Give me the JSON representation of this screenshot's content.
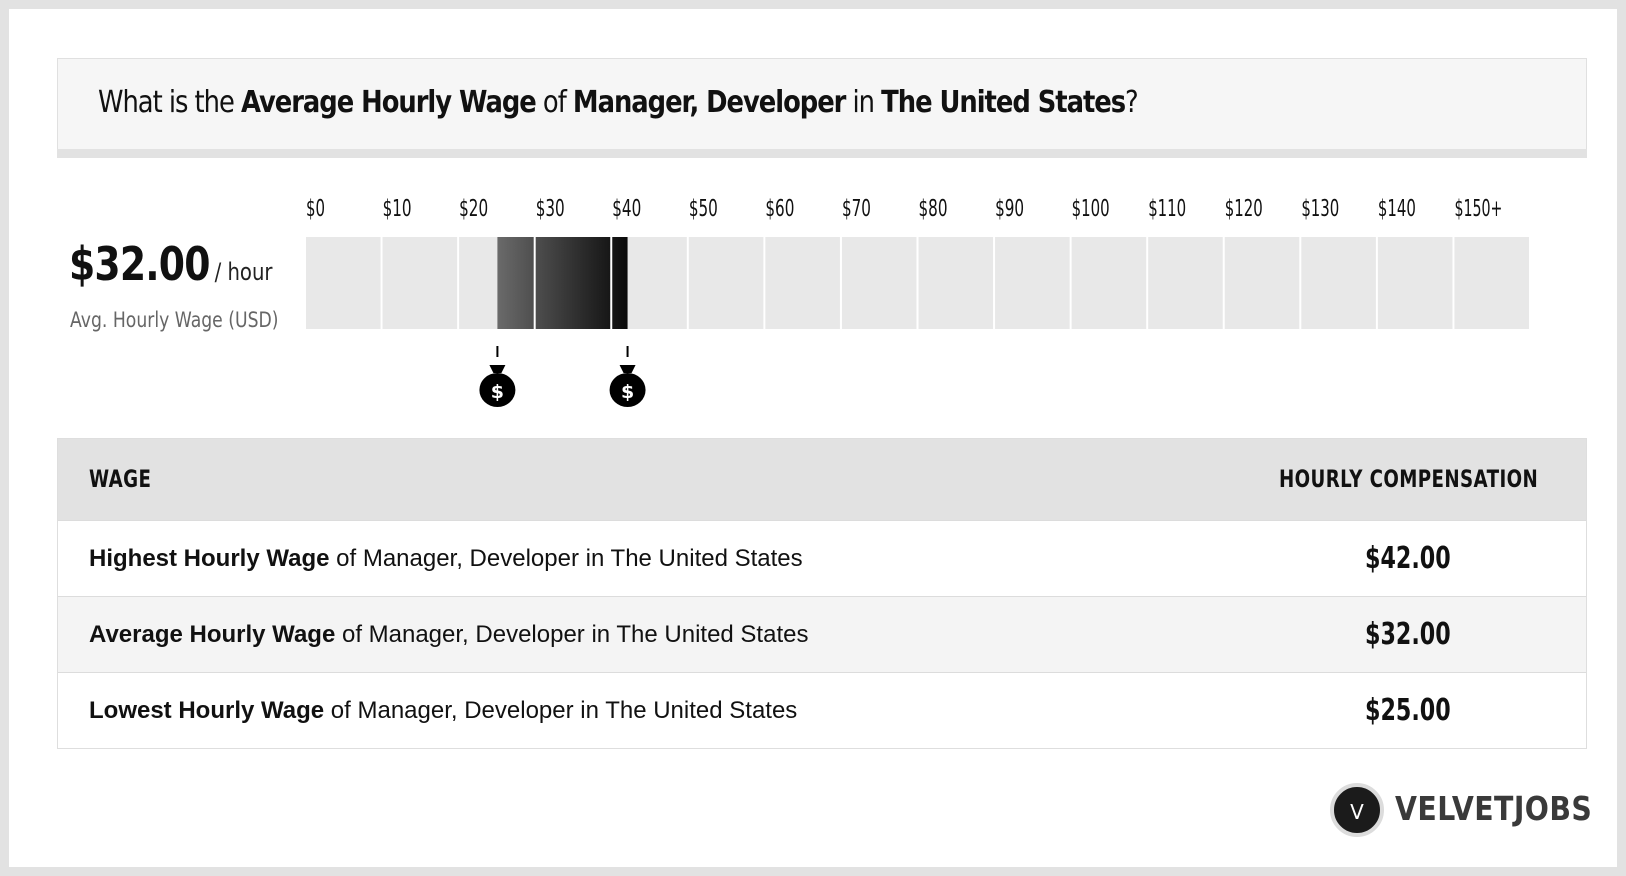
{
  "title": {
    "p1": "What is the ",
    "b1": "Average Hourly Wage",
    "p2": " of ",
    "b2": "Manager, Developer",
    "p3": " in ",
    "b3": "The United States",
    "p4": "?"
  },
  "summary": {
    "value": "$32.00",
    "unit": "/ hour",
    "label": "Avg. Hourly Wage (USD)"
  },
  "chart_data": {
    "type": "bar",
    "x_axis": {
      "min": 0,
      "max": 150,
      "step": 10,
      "tick_labels": [
        "$0",
        "$10",
        "$20",
        "$30",
        "$40",
        "$50",
        "$60",
        "$70",
        "$80",
        "$90",
        "$100",
        "$110",
        "$120",
        "$130",
        "$140",
        "$150+"
      ]
    },
    "range": {
      "low": 25,
      "average": 32,
      "high": 42
    },
    "markers": [
      25,
      42
    ],
    "colors": {
      "track": "#e8e8e8",
      "range_start": "#6a6a6a",
      "range_end": "#0a0a0a",
      "bag": "#000000"
    }
  },
  "table": {
    "headers": {
      "wage": "WAGE",
      "comp": "HOURLY COMPENSATION"
    },
    "rows": [
      {
        "bold": "Highest Hourly Wage",
        "rest": " of Manager, Developer in The United States",
        "value": "$42.00"
      },
      {
        "bold": "Average Hourly Wage",
        "rest": " of Manager, Developer in The United States",
        "value": "$32.00"
      },
      {
        "bold": "Lowest Hourly Wage",
        "rest": " of Manager, Developer in The United States",
        "value": "$25.00"
      }
    ]
  },
  "logo": {
    "mark": "V",
    "text": "VELVETJOBS"
  }
}
